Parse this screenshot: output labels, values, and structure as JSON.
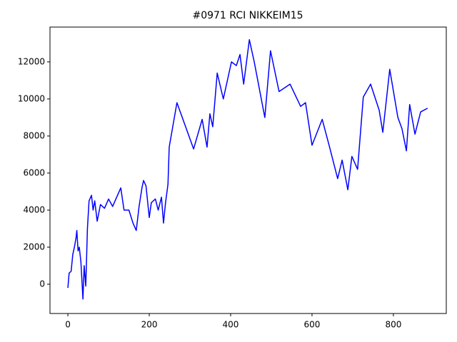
{
  "chart_data": {
    "type": "line",
    "title": "#0971 RCI NIKKEIM15",
    "x": [
      0,
      3,
      8,
      12,
      16,
      20,
      22,
      25,
      28,
      32,
      37,
      40,
      44,
      48,
      52,
      58,
      62,
      66,
      72,
      80,
      90,
      100,
      110,
      120,
      130,
      138,
      150,
      160,
      168,
      175,
      182,
      186,
      192,
      200,
      205,
      215,
      222,
      230,
      235,
      240,
      246,
      249,
      268,
      309,
      330,
      342,
      349,
      356,
      367,
      382,
      402,
      414,
      423,
      432,
      446,
      458,
      484,
      498,
      519,
      546,
      572,
      584,
      600,
      625,
      642,
      663,
      674,
      688,
      698,
      712,
      726,
      744,
      765,
      774,
      791,
      811,
      821,
      832,
      840,
      853,
      867,
      884
    ],
    "series": [
      {
        "name": "RCI",
        "color": "#0000ff",
        "values": [
          -200,
          600,
          700,
          1600,
          2000,
          2500,
          2900,
          1800,
          2000,
          1200,
          -800,
          1000,
          -100,
          3000,
          4500,
          4800,
          4000,
          4500,
          3400,
          4300,
          4100,
          4600,
          4200,
          4700,
          5200,
          4000,
          4000,
          3300,
          2900,
          4200,
          5200,
          5600,
          5300,
          3600,
          4400,
          4600,
          4000,
          4700,
          3300,
          4400,
          5400,
          7400,
          9800,
          7300,
          8900,
          7400,
          9200,
          8500,
          11400,
          10000,
          12000,
          11800,
          12400,
          10800,
          13200,
          12000,
          9000,
          12600,
          10400,
          10800,
          9600,
          9800,
          7500,
          8900,
          7500,
          5700,
          6700,
          5100,
          6900,
          6200,
          10100,
          10800,
          9400,
          8200,
          11600,
          9000,
          8400,
          7200,
          9700,
          8100,
          9300,
          9500
        ]
      }
    ],
    "xlim": [
      -44,
      930
    ],
    "ylim": [
      -1580,
      13880
    ],
    "xticks": [
      0,
      200,
      400,
      600,
      800
    ],
    "yticks": [
      0,
      2000,
      4000,
      6000,
      8000,
      10000,
      12000
    ]
  }
}
